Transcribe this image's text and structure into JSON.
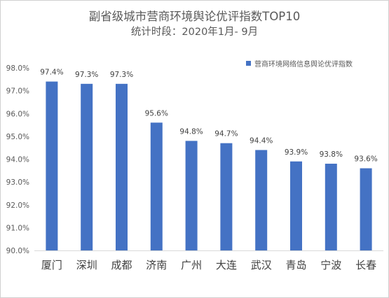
{
  "chart_data": {
    "type": "bar",
    "title": "副省级城市营商环境舆论优评指数TOP10",
    "subtitle": "统计时段：2020年1月- 9月",
    "categories": [
      "厦门",
      "深圳",
      "成都",
      "济南",
      "广州",
      "大连",
      "武汉",
      "青岛",
      "宁波",
      "长春"
    ],
    "series": [
      {
        "name": "营商环境网络信息舆论优评指数",
        "values": [
          97.4,
          97.3,
          97.3,
          95.6,
          94.8,
          94.7,
          94.4,
          93.9,
          93.8,
          93.6
        ],
        "labels": [
          "97.4%",
          "97.3%",
          "97.3%",
          "95.6%",
          "94.8%",
          "94.7%",
          "94.4%",
          "93.9%",
          "93.8%",
          "93.6%"
        ]
      }
    ],
    "ylim": [
      90.0,
      98.0
    ],
    "y_ticks": [
      90.0,
      91.0,
      92.0,
      93.0,
      94.0,
      95.0,
      96.0,
      97.0,
      98.0
    ],
    "y_tick_labels": [
      "90.0%",
      "91.0%",
      "92.0%",
      "93.0%",
      "94.0%",
      "95.0%",
      "96.0%",
      "97.0%",
      "98.0%"
    ],
    "grid": false,
    "legend_position": "top-right",
    "bar_color": "#4472c4"
  }
}
